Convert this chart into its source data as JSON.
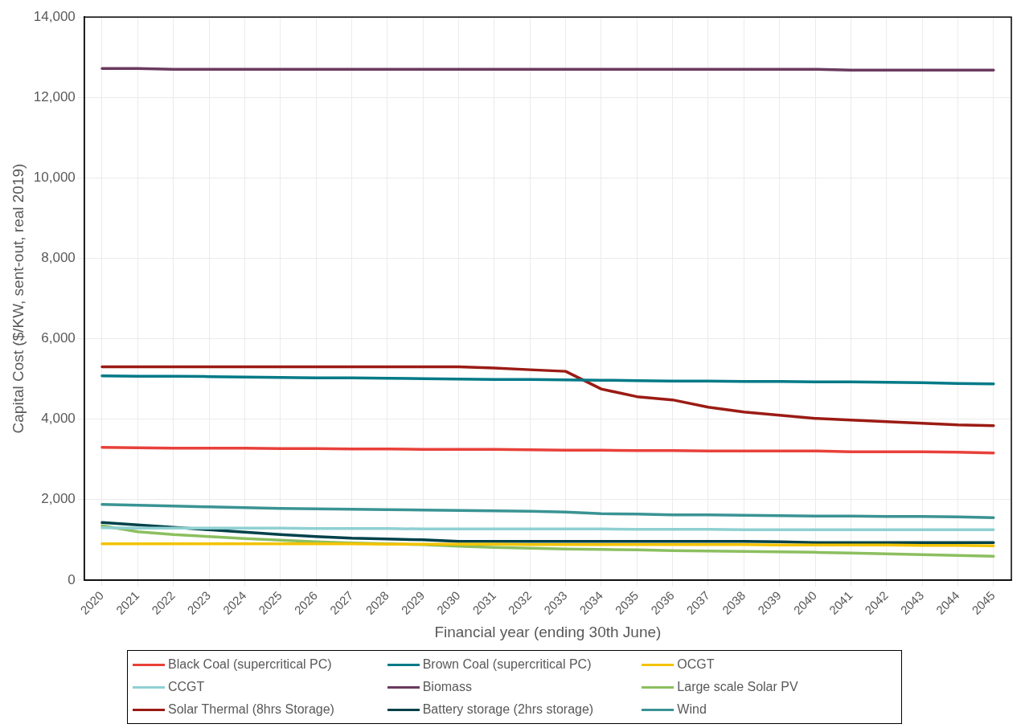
{
  "chart_data": {
    "type": "line",
    "xlabel": "Financial year (ending 30th June)",
    "ylabel": "Capital Cost ($/KW, sent-out, real 2019)",
    "categories": [
      "2020",
      "2021",
      "2022",
      "2023",
      "2024",
      "2025",
      "2026",
      "2027",
      "2028",
      "2029",
      "2030",
      "2031",
      "2032",
      "2033",
      "2034",
      "2035",
      "2036",
      "2037",
      "2038",
      "2039",
      "2040",
      "2041",
      "2042",
      "2043",
      "2044",
      "2045"
    ],
    "ylim": [
      0,
      14000
    ],
    "yticks": [
      {
        "value": 0,
        "label": "0"
      },
      {
        "value": 2000,
        "label": "2,000"
      },
      {
        "value": 4000,
        "label": "4,000"
      },
      {
        "value": 6000,
        "label": "6,000"
      },
      {
        "value": 8000,
        "label": "8,000"
      },
      {
        "value": 10000,
        "label": "10,000"
      },
      {
        "value": 12000,
        "label": "12,000"
      },
      {
        "value": 14000,
        "label": "14,000"
      }
    ],
    "grid": true,
    "legend": "bottom",
    "marker": "none",
    "line_style": "solid",
    "series": [
      {
        "name": "Black Coal (supercritical PC)",
        "color": "#e8413a",
        "values": [
          3300,
          3290,
          3280,
          3280,
          3280,
          3270,
          3270,
          3260,
          3260,
          3250,
          3250,
          3250,
          3240,
          3230,
          3230,
          3220,
          3220,
          3210,
          3210,
          3210,
          3210,
          3190,
          3190,
          3190,
          3180,
          3160
        ]
      },
      {
        "name": "Brown Coal (supercritical PC)",
        "color": "#007a87",
        "values": [
          5080,
          5070,
          5070,
          5060,
          5050,
          5040,
          5030,
          5030,
          5020,
          5010,
          5000,
          4990,
          4990,
          4980,
          4970,
          4960,
          4950,
          4950,
          4940,
          4940,
          4930,
          4930,
          4920,
          4910,
          4890,
          4880
        ]
      },
      {
        "name": "OCGT",
        "color": "#f2c300",
        "values": [
          900,
          900,
          900,
          900,
          900,
          900,
          900,
          900,
          890,
          890,
          890,
          890,
          880,
          880,
          880,
          880,
          880,
          880,
          880,
          870,
          870,
          870,
          870,
          860,
          860,
          850
        ]
      },
      {
        "name": "CCGT",
        "color": "#8fd0d2",
        "values": [
          1300,
          1290,
          1290,
          1290,
          1290,
          1290,
          1280,
          1280,
          1280,
          1270,
          1270,
          1270,
          1270,
          1270,
          1270,
          1260,
          1260,
          1260,
          1250,
          1250,
          1250,
          1250,
          1250,
          1250,
          1250,
          1250
        ]
      },
      {
        "name": "Biomass",
        "color": "#6b3a5e",
        "values": [
          12720,
          12720,
          12700,
          12700,
          12700,
          12700,
          12700,
          12700,
          12700,
          12700,
          12700,
          12700,
          12700,
          12700,
          12700,
          12700,
          12700,
          12700,
          12700,
          12700,
          12700,
          12680,
          12680,
          12680,
          12680,
          12680
        ]
      },
      {
        "name": "Large scale Solar PV",
        "color": "#8cbf5f",
        "values": [
          1350,
          1200,
          1130,
          1080,
          1030,
          990,
          950,
          920,
          900,
          880,
          840,
          810,
          790,
          770,
          760,
          750,
          730,
          720,
          710,
          700,
          690,
          670,
          650,
          630,
          610,
          590
        ]
      },
      {
        "name": "Solar Thermal (8hrs Storage)",
        "color": "#9b1b14",
        "values": [
          5300,
          5300,
          5300,
          5300,
          5300,
          5300,
          5300,
          5300,
          5300,
          5300,
          5300,
          5270,
          5230,
          5190,
          4750,
          4560,
          4480,
          4300,
          4180,
          4100,
          4020,
          3980,
          3940,
          3900,
          3860,
          3840
        ]
      },
      {
        "name": "Battery storage (2hrs storage)",
        "color": "#00424a",
        "values": [
          1430,
          1370,
          1310,
          1250,
          1190,
          1130,
          1080,
          1040,
          1020,
          1000,
          960,
          960,
          960,
          960,
          960,
          960,
          960,
          960,
          960,
          950,
          930,
          930,
          930,
          930,
          930,
          930
        ]
      },
      {
        "name": "Wind",
        "color": "#3a9394",
        "values": [
          1880,
          1860,
          1840,
          1820,
          1800,
          1780,
          1770,
          1760,
          1750,
          1740,
          1730,
          1720,
          1710,
          1690,
          1650,
          1640,
          1620,
          1620,
          1610,
          1600,
          1590,
          1590,
          1580,
          1580,
          1570,
          1550
        ]
      }
    ]
  }
}
